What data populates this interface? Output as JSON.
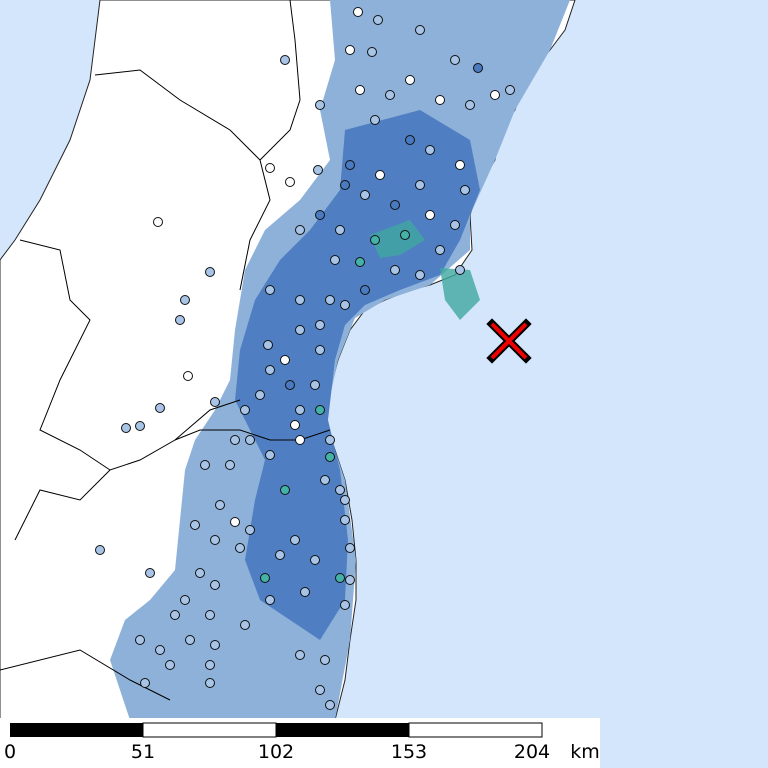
{
  "scale_bar": {
    "labels": [
      "0",
      "51",
      "102",
      "153",
      "204"
    ],
    "unit": "km"
  }
}
